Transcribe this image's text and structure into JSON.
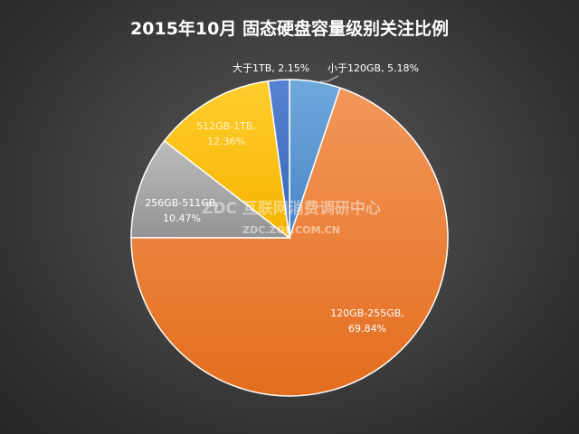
{
  "chart_data": {
    "type": "pie",
    "title": "2015年10月  固态硬盘容量级别关注比例",
    "start_angle_deg": 0,
    "direction": "clockwise",
    "slices": [
      {
        "name": "小于120GB",
        "value": 5.18,
        "label": "小于120GB, 5.18%",
        "color": "#5b9bd5",
        "label_color": "#ffffff"
      },
      {
        "name": "120GB-255GB",
        "value": 69.84,
        "label_lines": [
          "120GB-255GB,",
          "69.84%"
        ],
        "color": "#ed7d31",
        "label_color": "#ffffff"
      },
      {
        "name": "256GB-511GB",
        "value": 10.47,
        "label_lines": [
          "256GB-511GB,",
          "10.47%"
        ],
        "color": "#a5a5a5",
        "label_color": "#ffffff"
      },
      {
        "name": "512GB-1TB",
        "value": 12.36,
        "label_lines": [
          "512GB-1TB,",
          "12.36%"
        ],
        "color": "#ffc000",
        "label_color": "#fff2cc"
      },
      {
        "name": "大于1TB",
        "value": 2.15,
        "label": "大于1TB, 2.15%",
        "color": "#4472c4",
        "label_color": "#ffffff"
      }
    ],
    "legend": "none"
  },
  "watermark": {
    "text": "ZDC 互联网消费调研中心",
    "subtext": "ZDC.ZOL.COM.CN"
  }
}
